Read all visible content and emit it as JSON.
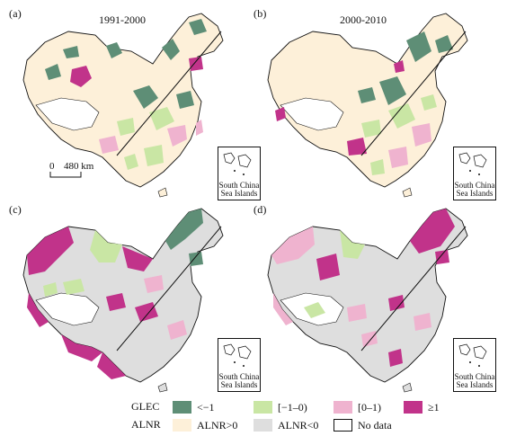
{
  "panels": [
    {
      "label": "(a)",
      "period": "1991-2000"
    },
    {
      "label": "(b)",
      "period": "2000-2010"
    },
    {
      "label": "(c)",
      "period": ""
    },
    {
      "label": "(d)",
      "period": ""
    }
  ],
  "inset_text_line1": "South China",
  "inset_text_line2": "Sea Islands",
  "scale_bar": {
    "left_label": "0",
    "right_label": "480 km"
  },
  "legend": {
    "glec": {
      "title": "GLEC",
      "items": [
        {
          "label": "<−1",
          "color": "#5e8e76"
        },
        {
          "label": "[−1–0)",
          "color": "#c9e6a4"
        },
        {
          "label": "[0–1)",
          "color": "#efb3cf"
        },
        {
          "label": "≥1",
          "color": "#c1338a"
        }
      ]
    },
    "alnr": {
      "title": "ALNR",
      "items": [
        {
          "label": "ALNR>0",
          "color": "#fdf0d9"
        },
        {
          "label": "ALNR<0",
          "color": "#dedede"
        },
        {
          "label": "No data",
          "color": "#ffffff"
        }
      ]
    }
  }
}
